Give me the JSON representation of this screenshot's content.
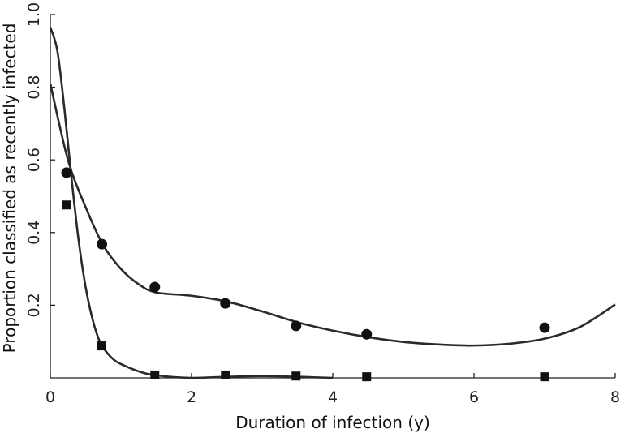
{
  "chart_data": {
    "type": "scatter",
    "title": "",
    "xlabel": "Duration of infection (y)",
    "ylabel": "Proportion classified as recently infected",
    "xlim": [
      0,
      8
    ],
    "ylim": [
      0,
      1.0
    ],
    "x_ticks": [
      0,
      2,
      4,
      6,
      8
    ],
    "x_tick_labels": [
      "0",
      "2",
      "4",
      "6",
      "8"
    ],
    "y_ticks": [
      0.2,
      0.4,
      0.6,
      0.8,
      1.0
    ],
    "y_tick_labels": [
      "0.2",
      "0.4",
      "0.6",
      "0.8",
      "1.0"
    ],
    "grid": false,
    "series": [
      {
        "marker": "circle",
        "points": [
          {
            "x": 0.23,
            "y": 0.565
          },
          {
            "x": 0.73,
            "y": 0.368
          },
          {
            "x": 1.48,
            "y": 0.25
          },
          {
            "x": 2.48,
            "y": 0.205
          },
          {
            "x": 3.48,
            "y": 0.143
          },
          {
            "x": 4.48,
            "y": 0.12
          },
          {
            "x": 7.0,
            "y": 0.138
          }
        ],
        "fit": [
          [
            0.0,
            0.81
          ],
          [
            0.25,
            0.6
          ],
          [
            0.5,
            0.47
          ],
          [
            0.75,
            0.365
          ],
          [
            1.0,
            0.3
          ],
          [
            1.25,
            0.258
          ],
          [
            1.5,
            0.235
          ],
          [
            2.0,
            0.226
          ],
          [
            2.5,
            0.21
          ],
          [
            3.0,
            0.183
          ],
          [
            3.5,
            0.153
          ],
          [
            4.0,
            0.13
          ],
          [
            4.5,
            0.112
          ],
          [
            5.0,
            0.099
          ],
          [
            5.5,
            0.092
          ],
          [
            6.0,
            0.089
          ],
          [
            6.5,
            0.094
          ],
          [
            7.0,
            0.108
          ],
          [
            7.5,
            0.14
          ],
          [
            8.0,
            0.202
          ]
        ]
      },
      {
        "marker": "square",
        "points": [
          {
            "x": 0.23,
            "y": 0.476
          },
          {
            "x": 0.73,
            "y": 0.088
          },
          {
            "x": 1.48,
            "y": 0.008
          },
          {
            "x": 2.48,
            "y": 0.008
          },
          {
            "x": 3.48,
            "y": 0.005
          },
          {
            "x": 4.48,
            "y": 0.003
          },
          {
            "x": 7.0,
            "y": 0.003
          }
        ],
        "fit": [
          [
            0.0,
            0.965
          ],
          [
            0.1,
            0.9
          ],
          [
            0.2,
            0.74
          ],
          [
            0.3,
            0.55
          ],
          [
            0.4,
            0.38
          ],
          [
            0.5,
            0.25
          ],
          [
            0.6,
            0.16
          ],
          [
            0.7,
            0.1
          ],
          [
            0.8,
            0.07
          ],
          [
            0.9,
            0.05
          ],
          [
            1.0,
            0.038
          ],
          [
            1.25,
            0.018
          ],
          [
            1.5,
            0.007
          ],
          [
            2.0,
            0.0
          ],
          [
            2.5,
            0.003
          ],
          [
            3.0,
            0.005
          ],
          [
            3.5,
            0.003
          ],
          [
            4.0,
            0.0
          ]
        ]
      }
    ]
  }
}
